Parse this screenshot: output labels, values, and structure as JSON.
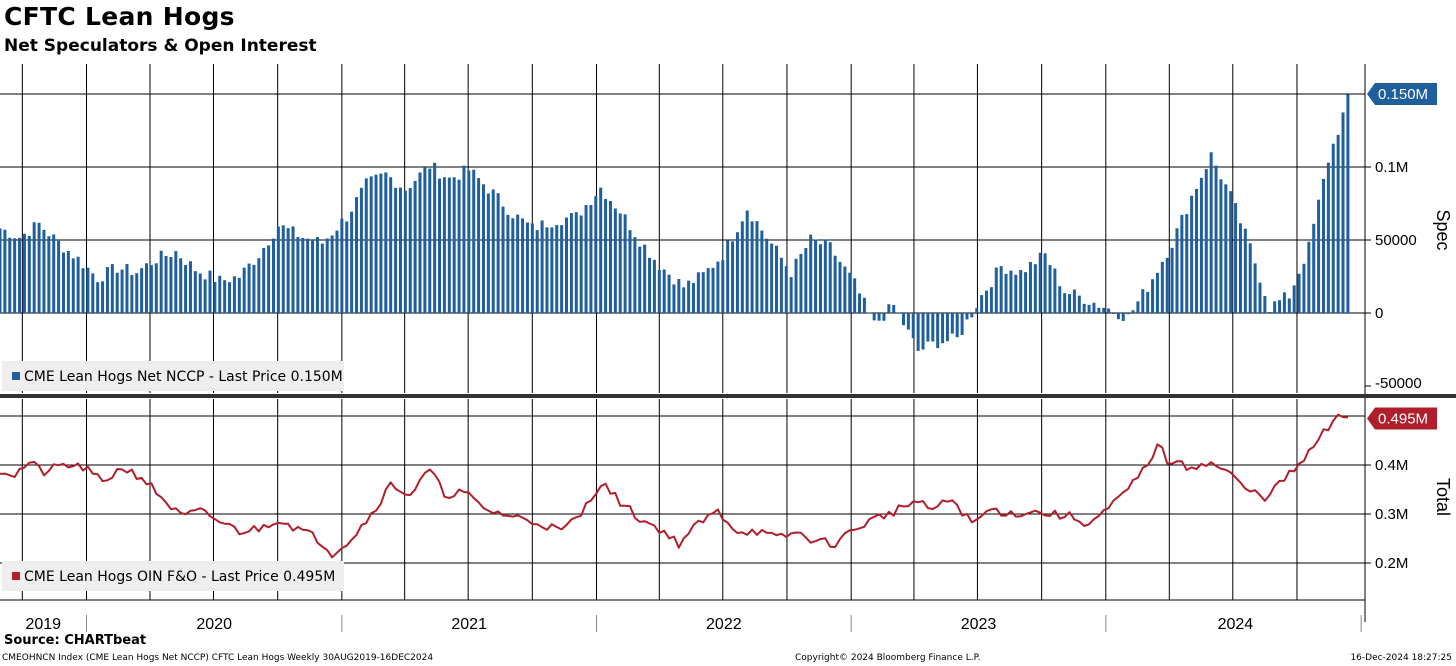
{
  "header": {
    "title": "CFTC Lean Hogs",
    "subtitle": "Net Speculators & Open Interest"
  },
  "footer": {
    "source": "Source: CHARTbeat",
    "index_info": "CMEOHNCN Index (CME Lean Hogs Net NCCP) CFTC Lean Hogs  Weekly 30AUG2019-16DEC2024",
    "copyright": "Copyright© 2024 Bloomberg Finance L.P.",
    "timestamp": "16-Dec-2024 18:27:25"
  },
  "colors": {
    "spec_bar": "#1f5f9e",
    "total_line": "#b01e2b",
    "grid": "#000000"
  },
  "chart_data": [
    {
      "type": "bar",
      "panel": "top",
      "ylabel": "Spec",
      "ylim": [
        -50000,
        160000
      ],
      "yticks": [
        {
          "v": 100000,
          "label": "0.1M"
        },
        {
          "v": 50000,
          "label": "50000"
        },
        {
          "v": 0,
          "label": "0"
        },
        {
          "v": -50000,
          "label": "-50000"
        }
      ],
      "last_value_label": "0.150M",
      "legend": "CME Lean Hogs Net NCCP - Last Price 0.150M",
      "x_start": "2019-08-30",
      "x_end": "2024-12-16",
      "keypoints": [
        [
          "2019-08-30",
          58000
        ],
        [
          "2019-09-27",
          52000
        ],
        [
          "2019-10-25",
          61000
        ],
        [
          "2019-11-22",
          48000
        ],
        [
          "2019-12-20",
          37000
        ],
        [
          "2020-01-17",
          24000
        ],
        [
          "2020-02-14",
          31000
        ],
        [
          "2020-03-13",
          28000
        ],
        [
          "2020-04-10",
          37000
        ],
        [
          "2020-05-08",
          42000
        ],
        [
          "2020-06-05",
          30000
        ],
        [
          "2020-07-10",
          22000
        ],
        [
          "2020-08-07",
          25000
        ],
        [
          "2020-09-04",
          40000
        ],
        [
          "2020-10-02",
          60000
        ],
        [
          "2020-11-06",
          52000
        ],
        [
          "2020-12-04",
          48000
        ],
        [
          "2021-01-08",
          66000
        ],
        [
          "2021-02-05",
          88000
        ],
        [
          "2021-03-05",
          95000
        ],
        [
          "2021-04-02",
          85000
        ],
        [
          "2021-05-07",
          101000
        ],
        [
          "2021-06-04",
          92000
        ],
        [
          "2021-07-02",
          98000
        ],
        [
          "2021-08-06",
          82000
        ],
        [
          "2021-09-03",
          68000
        ],
        [
          "2021-10-01",
          58000
        ],
        [
          "2021-11-05",
          64000
        ],
        [
          "2021-12-03",
          66000
        ],
        [
          "2022-01-07",
          86000
        ],
        [
          "2022-02-04",
          70000
        ],
        [
          "2022-03-04",
          50000
        ],
        [
          "2022-04-01",
          33000
        ],
        [
          "2022-05-06",
          18000
        ],
        [
          "2022-06-03",
          26000
        ],
        [
          "2022-07-01",
          40000
        ],
        [
          "2022-08-05",
          72000
        ],
        [
          "2022-09-02",
          52000
        ],
        [
          "2022-10-07",
          28000
        ],
        [
          "2022-11-04",
          50000
        ],
        [
          "2022-12-02",
          45000
        ],
        [
          "2023-01-06",
          20000
        ],
        [
          "2023-02-03",
          -8000
        ],
        [
          "2023-03-03",
          5000
        ],
        [
          "2023-04-07",
          -26000
        ],
        [
          "2023-05-05",
          -20000
        ],
        [
          "2023-06-02",
          -18000
        ],
        [
          "2023-07-07",
          12000
        ],
        [
          "2023-08-04",
          32000
        ],
        [
          "2023-09-01",
          28000
        ],
        [
          "2023-10-06",
          40000
        ],
        [
          "2023-11-03",
          15000
        ],
        [
          "2023-12-01",
          10000
        ],
        [
          "2024-01-05",
          3000
        ],
        [
          "2024-02-02",
          -3000
        ],
        [
          "2024-03-01",
          18000
        ],
        [
          "2024-04-05",
          48000
        ],
        [
          "2024-05-03",
          80000
        ],
        [
          "2024-05-31",
          108000
        ],
        [
          "2024-06-28",
          80000
        ],
        [
          "2024-07-26",
          45000
        ],
        [
          "2024-08-23",
          4000
        ],
        [
          "2024-09-20",
          12000
        ],
        [
          "2024-10-18",
          45000
        ],
        [
          "2024-11-15",
          105000
        ],
        [
          "2024-12-16",
          150000
        ]
      ]
    },
    {
      "type": "line",
      "panel": "bottom",
      "ylabel": "Total",
      "ylim": [
        0.14,
        0.52
      ],
      "yticks": [
        {
          "v": 0.4,
          "label": "0.4M"
        },
        {
          "v": 0.3,
          "label": "0.3M"
        },
        {
          "v": 0.2,
          "label": "0.2M"
        }
      ],
      "last_value_label": "0.495M",
      "legend": "CME Lean Hogs OIN F&O - Last Price 0.495M",
      "keypoints": [
        [
          "2019-08-30",
          0.39
        ],
        [
          "2019-09-20",
          0.38
        ],
        [
          "2019-10-11",
          0.405
        ],
        [
          "2019-11-01",
          0.385
        ],
        [
          "2019-11-29",
          0.4
        ],
        [
          "2019-12-27",
          0.395
        ],
        [
          "2020-01-24",
          0.365
        ],
        [
          "2020-02-21",
          0.395
        ],
        [
          "2020-03-20",
          0.375
        ],
        [
          "2020-04-17",
          0.335
        ],
        [
          "2020-05-15",
          0.295
        ],
        [
          "2020-06-12",
          0.305
        ],
        [
          "2020-07-10",
          0.285
        ],
        [
          "2020-08-07",
          0.265
        ],
        [
          "2020-09-04",
          0.27
        ],
        [
          "2020-10-02",
          0.29
        ],
        [
          "2020-10-30",
          0.27
        ],
        [
          "2020-11-27",
          0.25
        ],
        [
          "2020-12-18",
          0.22
        ],
        [
          "2021-01-15",
          0.25
        ],
        [
          "2021-02-12",
          0.3
        ],
        [
          "2021-03-12",
          0.36
        ],
        [
          "2021-04-09",
          0.34
        ],
        [
          "2021-05-07",
          0.39
        ],
        [
          "2021-05-28",
          0.34
        ],
        [
          "2021-06-25",
          0.345
        ],
        [
          "2021-07-23",
          0.31
        ],
        [
          "2021-08-20",
          0.3
        ],
        [
          "2021-09-17",
          0.29
        ],
        [
          "2021-10-15",
          0.28
        ],
        [
          "2021-11-12",
          0.265
        ],
        [
          "2021-12-10",
          0.3
        ],
        [
          "2022-01-07",
          0.365
        ],
        [
          "2022-02-04",
          0.325
        ],
        [
          "2022-03-04",
          0.29
        ],
        [
          "2022-04-01",
          0.27
        ],
        [
          "2022-04-29",
          0.24
        ],
        [
          "2022-05-27",
          0.28
        ],
        [
          "2022-06-24",
          0.305
        ],
        [
          "2022-07-22",
          0.265
        ],
        [
          "2022-08-19",
          0.265
        ],
        [
          "2022-09-16",
          0.25
        ],
        [
          "2022-10-14",
          0.262
        ],
        [
          "2022-11-11",
          0.245
        ],
        [
          "2022-12-09",
          0.24
        ],
        [
          "2023-01-06",
          0.27
        ],
        [
          "2023-02-03",
          0.29
        ],
        [
          "2023-03-03",
          0.305
        ],
        [
          "2023-03-31",
          0.325
        ],
        [
          "2023-04-28",
          0.31
        ],
        [
          "2023-05-26",
          0.33
        ],
        [
          "2023-06-23",
          0.28
        ],
        [
          "2023-07-21",
          0.31
        ],
        [
          "2023-08-18",
          0.3
        ],
        [
          "2023-09-15",
          0.305
        ],
        [
          "2023-10-13",
          0.3
        ],
        [
          "2023-11-10",
          0.295
        ],
        [
          "2023-12-08",
          0.28
        ],
        [
          "2024-01-05",
          0.31
        ],
        [
          "2024-02-02",
          0.35
        ],
        [
          "2024-03-01",
          0.4
        ],
        [
          "2024-03-15",
          0.445
        ],
        [
          "2024-03-29",
          0.41
        ],
        [
          "2024-04-26",
          0.395
        ],
        [
          "2024-05-24",
          0.405
        ],
        [
          "2024-06-21",
          0.39
        ],
        [
          "2024-07-19",
          0.35
        ],
        [
          "2024-08-16",
          0.335
        ],
        [
          "2024-09-13",
          0.37
        ],
        [
          "2024-10-11",
          0.41
        ],
        [
          "2024-11-08",
          0.465
        ],
        [
          "2024-12-02",
          0.5
        ],
        [
          "2024-12-16",
          0.495
        ]
      ]
    }
  ],
  "x_axis": {
    "years": [
      "2019",
      "2020",
      "2021",
      "2022",
      "2023",
      "2024"
    ]
  }
}
